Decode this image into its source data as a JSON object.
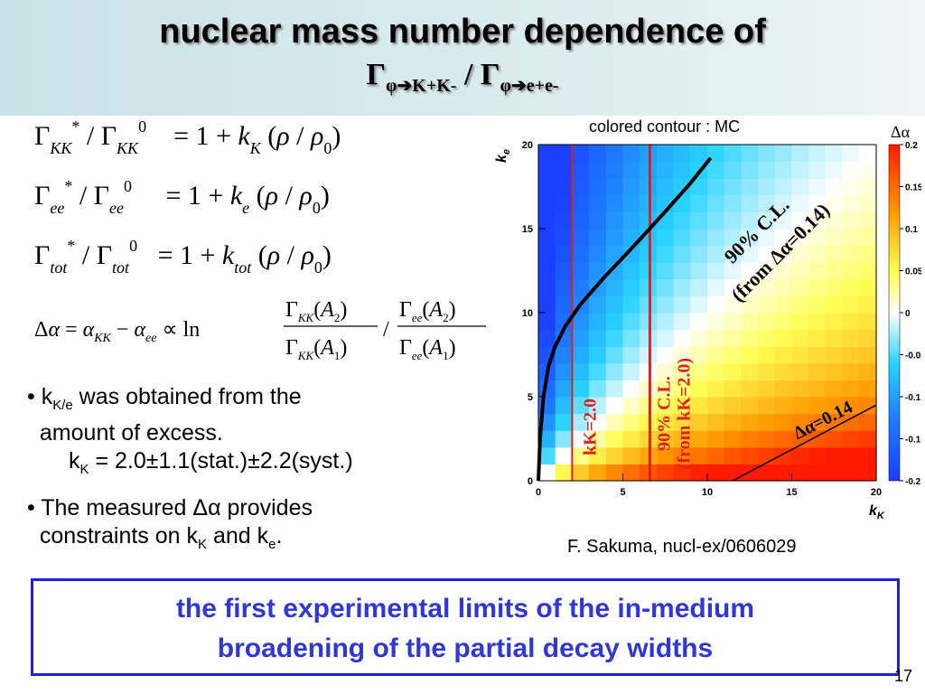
{
  "title": {
    "line1": "nuclear mass number dependence of",
    "line2_gamma1": "Γ",
    "line2_sub1": "φ➔K+K-",
    "line2_sep": " / ",
    "line2_gamma2": "Γ",
    "line2_sub2": "φ➔e+e-"
  },
  "equations": {
    "eq1": {
      "lhs": "Γ*KK / Γ0KK",
      "rhs": "= 1 + kK (ρ / ρ0)"
    },
    "eq2": {
      "lhs": "Γ*ee / Γ0ee",
      "rhs": "= 1 + ke (ρ / ρ0)"
    },
    "eq3": {
      "lhs": "Γ*tot / Γ0tot",
      "rhs": "= 1 + ktot (ρ / ρ0)"
    },
    "eq4": "Δα = αKK − αee ∝ ln ΓKK(A2)/ΓKK(A1) / Γee(A2)/Γee(A1)"
  },
  "bullets": {
    "b1_pre": "k",
    "b1_sub": "K/e",
    "b1_post": " was obtained from the",
    "b1_line2": "amount of excess.",
    "b1_line3_pre": "k",
    "b1_line3_sub": "K",
    "b1_line3_post": " = 2.0±1.1(stat.)±2.2(syst.)",
    "b2_line1": "The measured Δα provides",
    "b2_line2_pre": "constraints on k",
    "b2_line2_sub1": "K",
    "b2_line2_mid": " and k",
    "b2_line2_sub2": "e",
    "b2_line2_post": "."
  },
  "caption_mc": "colored contour : MC",
  "reference": "F. Sakuma, nucl-ex/0606029",
  "conclusion": {
    "line1": "the first experimental limits of the in-medium",
    "line2": "broadening of the partial decay widths"
  },
  "page_number": "17",
  "colors": {
    "title_band": "#cfe6e8",
    "conclusion_text": "#2f37d6",
    "conclusion_border": "#1e22d8",
    "limit_lines": "#e02020"
  },
  "chart_data": {
    "type": "heatmap",
    "xlabel": "k_K",
    "ylabel": "k_e",
    "zlabel": "Δα",
    "xlim": [
      0,
      20
    ],
    "ylim": [
      0,
      20
    ],
    "zlim": [
      -0.2,
      0.2
    ],
    "x_ticks": [
      "0",
      "5",
      "10",
      "15",
      "20"
    ],
    "y_ticks": [
      "0",
      "5",
      "10",
      "15",
      "20"
    ],
    "z_ticks": [
      "0.2",
      "0.15",
      "0.1",
      "0.05",
      "0",
      "-0.05",
      "-0.1",
      "-0.15",
      "-0.2"
    ],
    "vertical_lines": [
      {
        "x": 2.0,
        "label": "k_K=2.0"
      },
      {
        "x": 6.6,
        "label": "90% C.L. (from k_K=2.0)"
      }
    ],
    "contour_curve": {
      "label": "90% C.L. (from Δα=0.14)",
      "x": [
        0,
        0.1,
        0.3,
        0.6,
        1.0,
        1.6,
        2.5,
        3.8,
        5.5,
        7.5,
        9.0,
        10.2
      ],
      "y": [
        0,
        2.5,
        5.0,
        6.8,
        8.0,
        9.2,
        10.5,
        12.0,
        13.8,
        16.0,
        17.7,
        19.2
      ]
    },
    "limit_line": {
      "label": "Δα=0.14",
      "x": [
        11.5,
        20
      ],
      "y": [
        0,
        4.5
      ]
    }
  }
}
